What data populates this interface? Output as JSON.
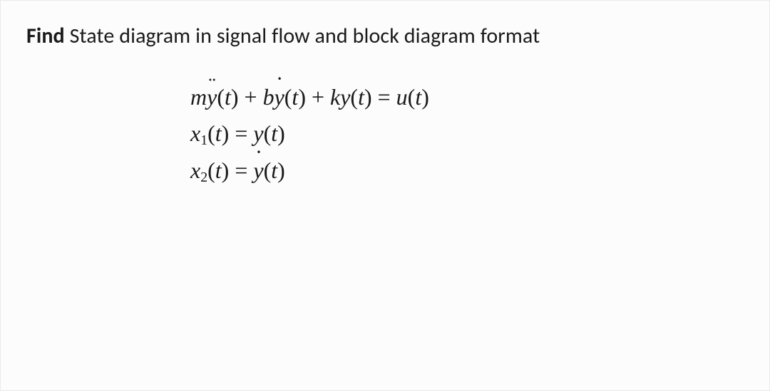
{
  "prompt": {
    "bold": "Find",
    "rest": " State diagram in signal flow and block diagram format"
  },
  "eq1": {
    "m": "m",
    "y1": "y",
    "t": "t",
    "plus": " + ",
    "b": "b",
    "y2": "y",
    "k": "k",
    "y3": "y",
    "eq": " = ",
    "u": "u"
  },
  "eq2": {
    "x": "x",
    "s": "1",
    "t": "t",
    "eq": " = ",
    "y": "y"
  },
  "eq3": {
    "x": "x",
    "s": "2",
    "t": "t",
    "eq": " = ",
    "y": "y"
  },
  "paren_open": "(",
  "paren_close": ")"
}
